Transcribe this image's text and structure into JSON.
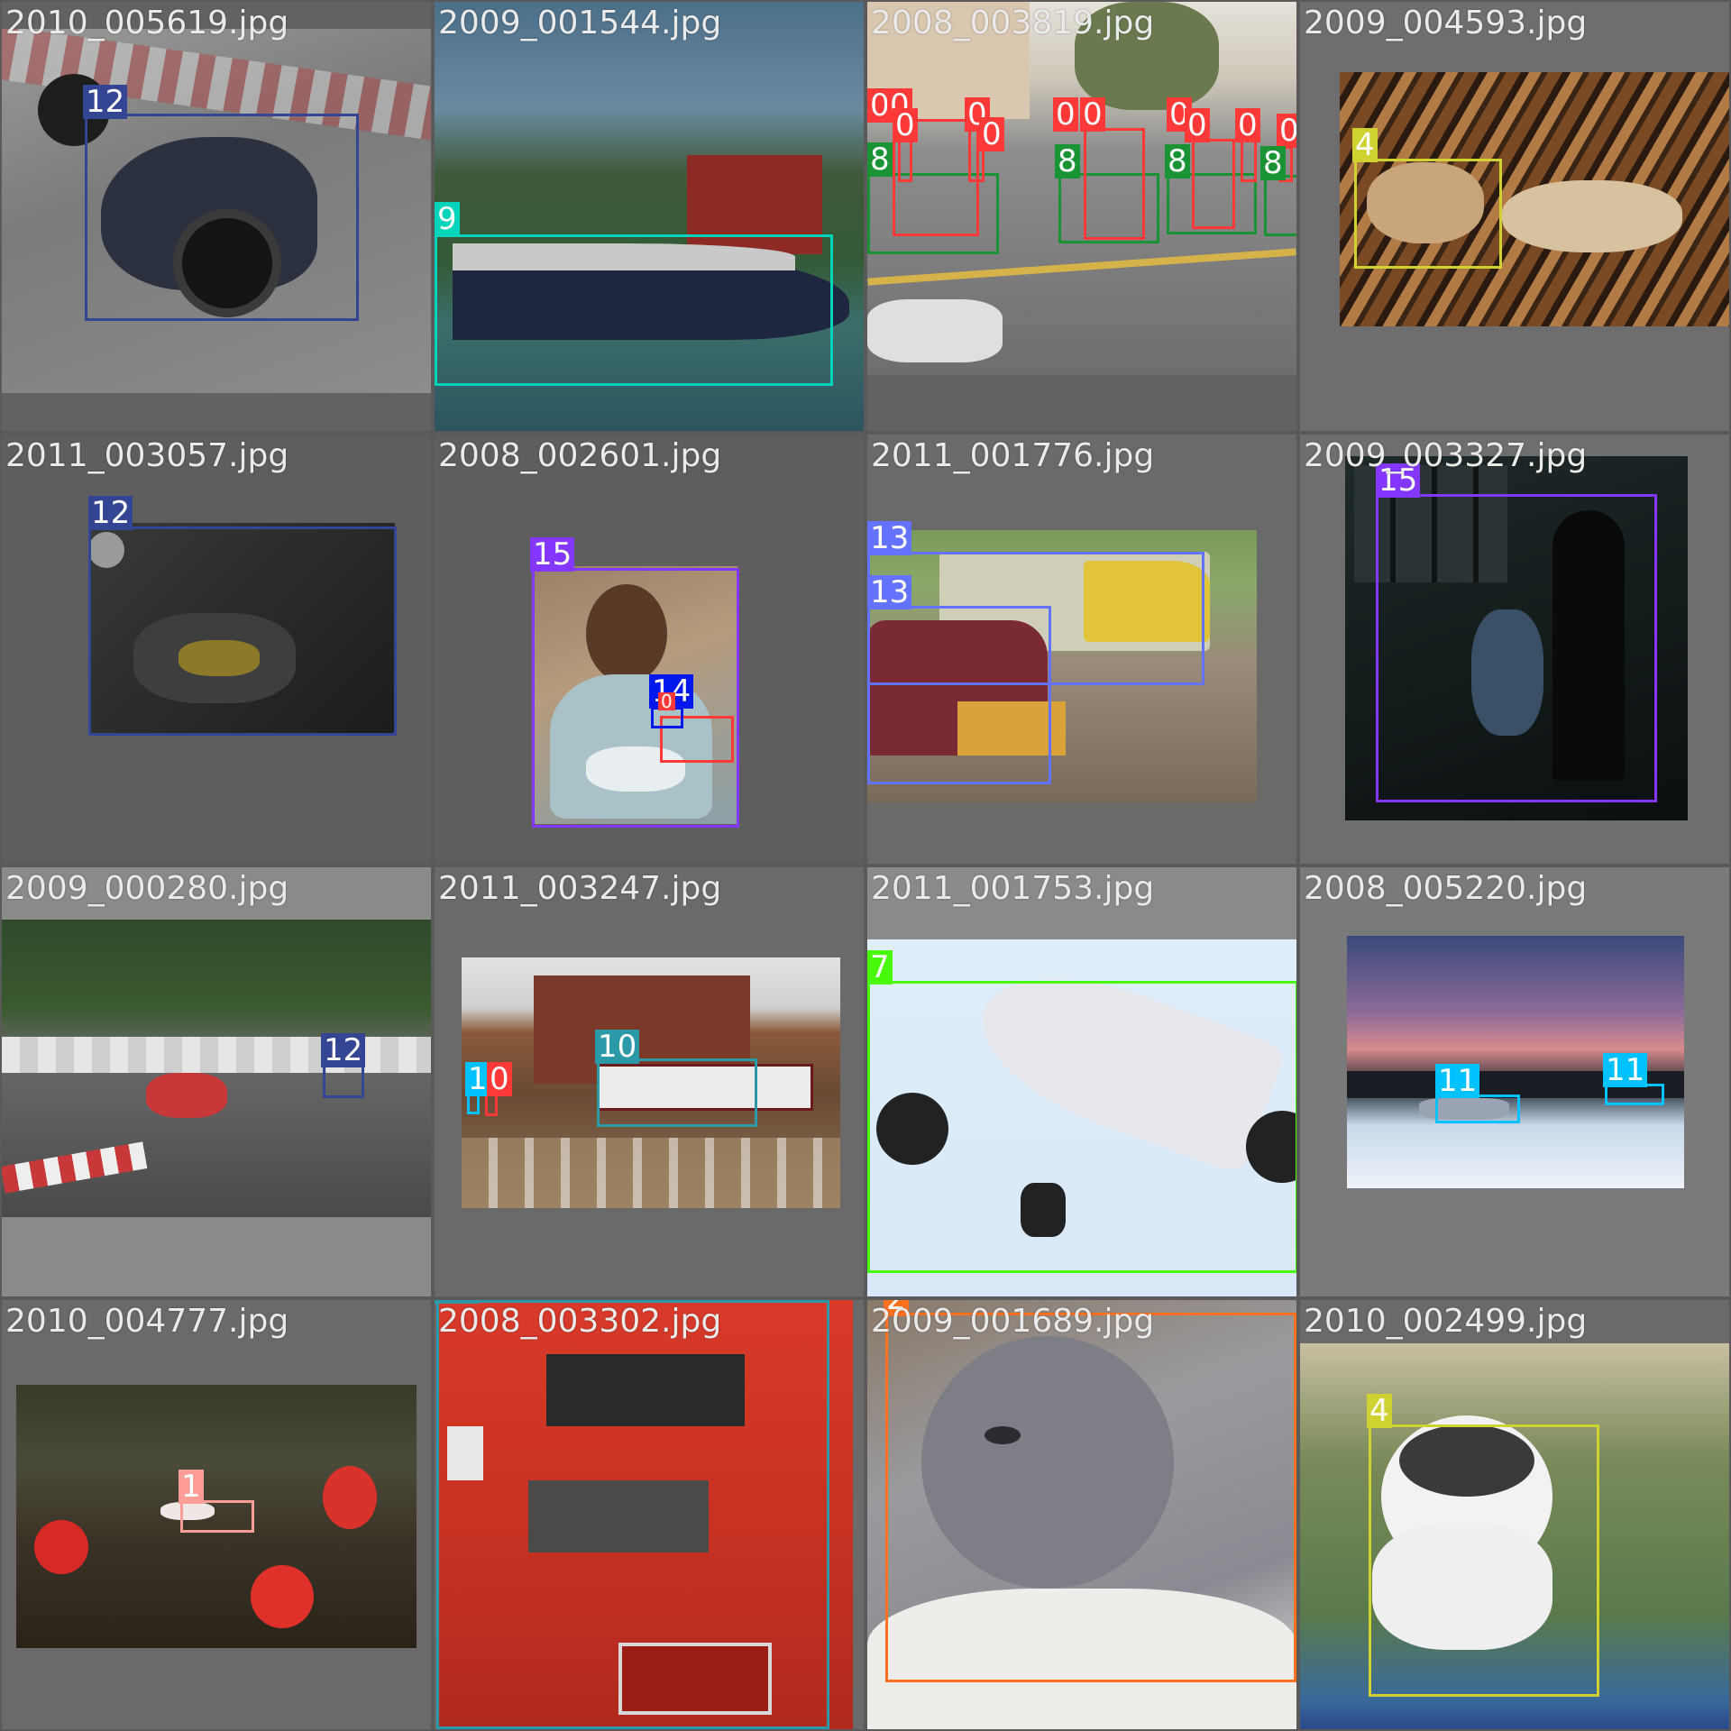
{
  "colors": {
    "c0": "#ff3838",
    "c1": "#ff9d97",
    "c2": "#ff701f",
    "c4": "#cfd231",
    "c7": "#48f90a",
    "c8": "#1a9334",
    "c9": "#00d4bb",
    "c10": "#2c99a8",
    "c11": "#00c2ff",
    "c12": "#344593",
    "c13": "#6473ff",
    "c14": "#0018ec",
    "c15": "#8438ff"
  },
  "tiles": [
    {
      "filename": "2010_005619.jpg",
      "labels": [
        "12"
      ]
    },
    {
      "filename": "2009_001544.jpg",
      "labels": [
        "9"
      ]
    },
    {
      "filename": "2008_003819.jpg",
      "labels": [
        "0",
        "0",
        "0",
        "0",
        "0",
        "0",
        "0",
        "0",
        "0",
        "0",
        "0",
        "8",
        "8",
        "8",
        "8"
      ]
    },
    {
      "filename": "2009_004593.jpg",
      "labels": [
        "4"
      ]
    },
    {
      "filename": "2011_003057.jpg",
      "labels": [
        "12"
      ]
    },
    {
      "filename": "2008_002601.jpg",
      "labels": [
        "15",
        "14",
        "0"
      ]
    },
    {
      "filename": "2011_001776.jpg",
      "labels": [
        "13",
        "13"
      ]
    },
    {
      "filename": "2009_003327.jpg",
      "labels": [
        "15"
      ]
    },
    {
      "filename": "2009_000280.jpg",
      "labels": [
        "12"
      ]
    },
    {
      "filename": "2011_003247.jpg",
      "labels": [
        "10",
        "11",
        "0"
      ]
    },
    {
      "filename": "2011_001753.jpg",
      "labels": [
        "7"
      ]
    },
    {
      "filename": "2008_005220.jpg",
      "labels": [
        "11",
        "11"
      ]
    },
    {
      "filename": "2010_004777.jpg",
      "labels": [
        "1"
      ]
    },
    {
      "filename": "2008_003302.jpg",
      "labels": [
        "10"
      ]
    },
    {
      "filename": "2009_001689.jpg",
      "labels": [
        "2"
      ]
    },
    {
      "filename": "2010_002499.jpg",
      "labels": [
        "4"
      ]
    }
  ]
}
